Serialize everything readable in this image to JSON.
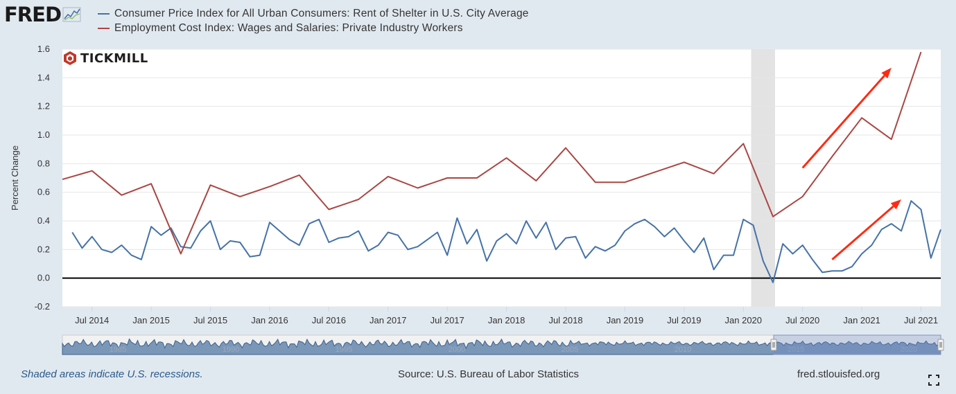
{
  "header": {
    "logo_text": "FRED",
    "legend": [
      {
        "label": "Consumer Price Index for All Urban Consumers: Rent of Shelter in U.S. City Average",
        "color": "#4572a7"
      },
      {
        "label": "Employment Cost Index: Wages and Salaries: Private Industry Workers",
        "color": "#aa4643"
      }
    ]
  },
  "watermark": {
    "text": "TICKMILL",
    "color": "#c0392b"
  },
  "footer": {
    "note": "Shaded areas indicate U.S. recessions.",
    "source": "Source: U.S. Bureau of Labor Statistics",
    "url": "fred.stlouisfed.org",
    "fullscreen_icon": "fullscreen-icon"
  },
  "chart_data": {
    "type": "line",
    "ylabel": "Percent Change",
    "ylim": [
      -0.2,
      1.6
    ],
    "yticks": [
      -0.2,
      0.0,
      0.2,
      0.4,
      0.6,
      0.8,
      1.0,
      1.2,
      1.4,
      1.6
    ],
    "xlim": [
      "2014-04",
      "2021-09"
    ],
    "xticks": [
      {
        "date": "2014-07",
        "label": "Jul 2014"
      },
      {
        "date": "2015-01",
        "label": "Jan 2015"
      },
      {
        "date": "2015-07",
        "label": "Jul 2015"
      },
      {
        "date": "2016-01",
        "label": "Jan 2016"
      },
      {
        "date": "2016-07",
        "label": "Jul 2016"
      },
      {
        "date": "2017-01",
        "label": "Jan 2017"
      },
      {
        "date": "2017-07",
        "label": "Jul 2017"
      },
      {
        "date": "2018-01",
        "label": "Jan 2018"
      },
      {
        "date": "2018-07",
        "label": "Jul 2018"
      },
      {
        "date": "2019-01",
        "label": "Jan 2019"
      },
      {
        "date": "2019-07",
        "label": "Jul 2019"
      },
      {
        "date": "2020-01",
        "label": "Jan 2020"
      },
      {
        "date": "2020-07",
        "label": "Jul 2020"
      },
      {
        "date": "2021-01",
        "label": "Jan 2021"
      },
      {
        "date": "2021-07",
        "label": "Jul 2021"
      }
    ],
    "recession": {
      "start": "2020-02",
      "end": "2020-04"
    },
    "zero_line": 0.0,
    "grid": true,
    "legend_position": "top-left",
    "series": [
      {
        "name": "Consumer Price Index for All Urban Consumers: Rent of Shelter in U.S. City Average",
        "color": "#4572a7",
        "frequency": "monthly",
        "start": "2014-05",
        "values": [
          0.32,
          0.21,
          0.29,
          0.2,
          0.18,
          0.23,
          0.16,
          0.13,
          0.36,
          0.3,
          0.35,
          0.22,
          0.21,
          0.33,
          0.4,
          0.2,
          0.26,
          0.25,
          0.15,
          0.16,
          0.39,
          0.33,
          0.27,
          0.23,
          0.38,
          0.41,
          0.25,
          0.28,
          0.29,
          0.33,
          0.19,
          0.23,
          0.32,
          0.3,
          0.2,
          0.22,
          0.27,
          0.32,
          0.16,
          0.42,
          0.24,
          0.34,
          0.12,
          0.26,
          0.31,
          0.24,
          0.4,
          0.28,
          0.39,
          0.2,
          0.28,
          0.29,
          0.14,
          0.22,
          0.19,
          0.23,
          0.33,
          0.38,
          0.41,
          0.36,
          0.29,
          0.35,
          0.26,
          0.18,
          0.28,
          0.06,
          0.16,
          0.16,
          0.41,
          0.37,
          0.12,
          -0.03,
          0.24,
          0.17,
          0.23,
          0.13,
          0.04,
          0.05,
          0.05,
          0.08,
          0.17,
          0.23,
          0.34,
          0.38,
          0.33,
          0.54,
          0.48,
          0.14,
          0.34
        ]
      },
      {
        "name": "Employment Cost Index: Wages and Salaries: Private Industry Workers",
        "color": "#aa4643",
        "frequency": "quarterly",
        "x": [
          "2014-04",
          "2014-07",
          "2014-10",
          "2015-01",
          "2015-04",
          "2015-07",
          "2015-10",
          "2016-01",
          "2016-04",
          "2016-07",
          "2016-10",
          "2017-01",
          "2017-04",
          "2017-07",
          "2017-10",
          "2018-01",
          "2018-04",
          "2018-07",
          "2018-10",
          "2019-01",
          "2019-04",
          "2019-07",
          "2019-10",
          "2020-01",
          "2020-04",
          "2020-07",
          "2020-10",
          "2021-01",
          "2021-04",
          "2021-07"
        ],
        "values": [
          0.69,
          0.75,
          0.58,
          0.66,
          0.17,
          0.65,
          0.57,
          0.64,
          0.72,
          0.48,
          0.55,
          0.71,
          0.63,
          0.7,
          0.7,
          0.84,
          0.68,
          0.91,
          0.67,
          0.67,
          0.74,
          0.81,
          0.73,
          0.94,
          0.43,
          0.57,
          0.85,
          1.12,
          0.97,
          1.58
        ]
      }
    ],
    "annotations": [
      {
        "type": "arrow",
        "color": "#ff2a12",
        "from": {
          "date": "2020-07",
          "value": 0.77
        },
        "to": {
          "date": "2021-04",
          "value": 1.47
        }
      },
      {
        "type": "arrow",
        "color": "#ff2a12",
        "from": {
          "date": "2020-10",
          "value": 0.13
        },
        "to": {
          "date": "2021-05",
          "value": 0.55
        }
      }
    ],
    "navigator": {
      "labels": [
        "1985",
        "1990",
        "1995",
        "2000",
        "2005",
        "2010",
        "2015",
        "2020"
      ],
      "range_start": "2014-04",
      "range_end": "2021-09"
    }
  }
}
